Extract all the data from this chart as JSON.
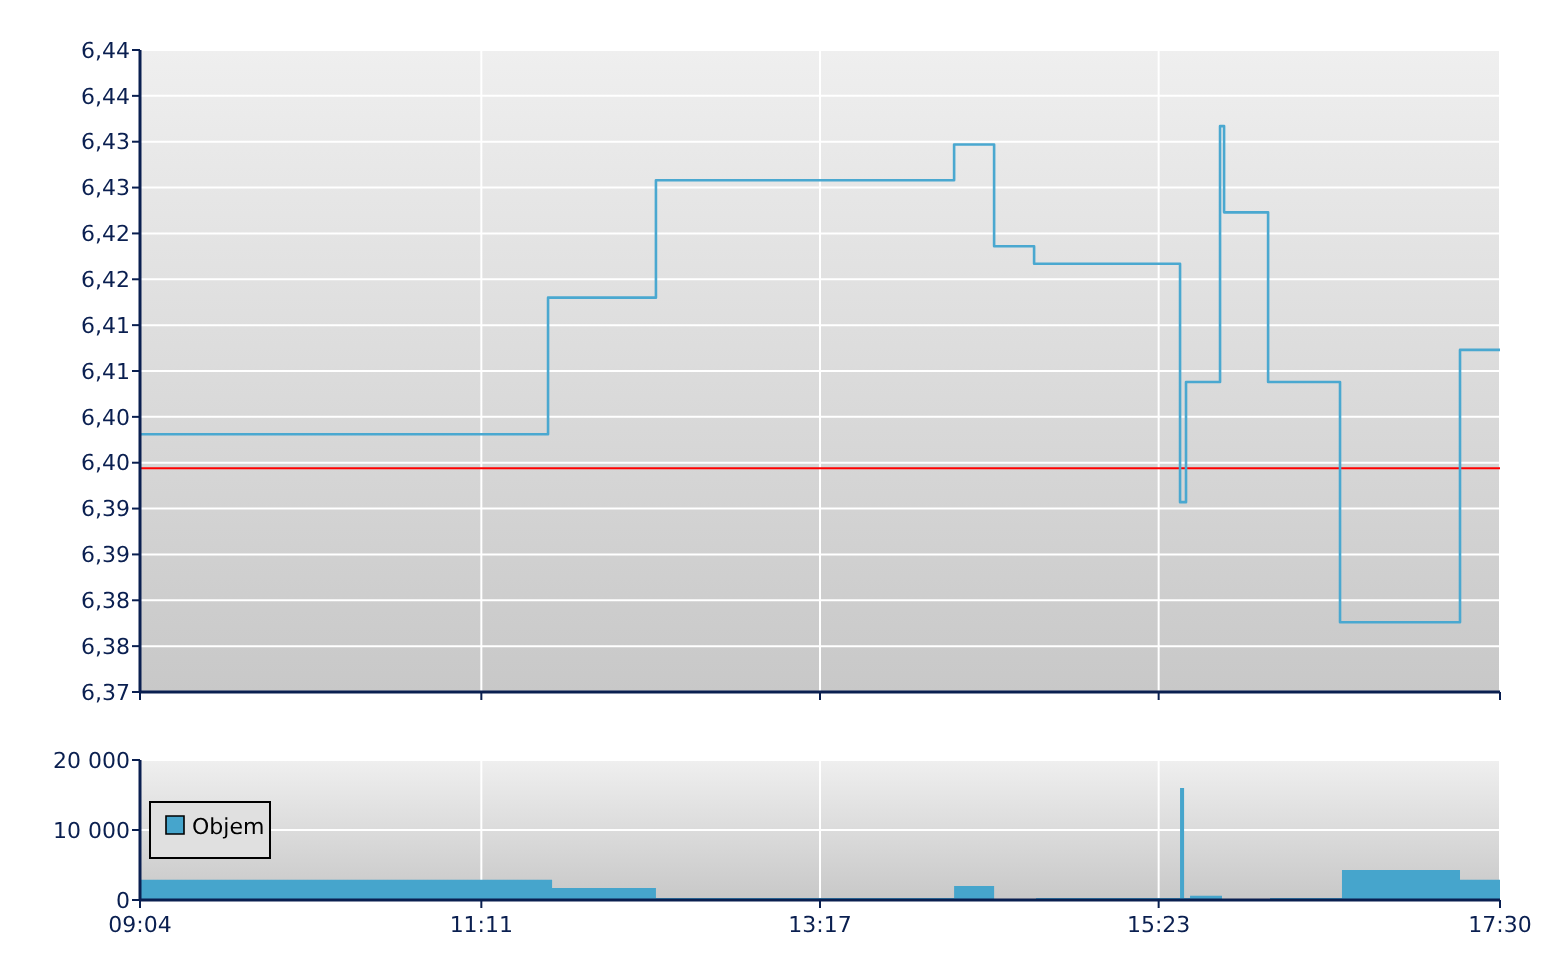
{
  "chart_data": [
    {
      "type": "step",
      "xlim": [
        9.0667,
        17.5
      ],
      "xticks": [
        {
          "value": 9.0667,
          "label": null
        },
        {
          "value": 11.1833,
          "label": null
        },
        {
          "value": 13.2833,
          "label": null
        },
        {
          "value": 15.3833,
          "label": null
        },
        {
          "value": 17.5,
          "label": null
        }
      ],
      "ylim": [
        6.37,
        6.44
      ],
      "yticks": [
        {
          "value": 6.37,
          "label": "6,37"
        },
        {
          "value": 6.375,
          "label": "6,38"
        },
        {
          "value": 6.38,
          "label": "6,38"
        },
        {
          "value": 6.385,
          "label": "6,39"
        },
        {
          "value": 6.39,
          "label": "6,39"
        },
        {
          "value": 6.395,
          "label": "6,40"
        },
        {
          "value": 6.4,
          "label": "6,40"
        },
        {
          "value": 6.405,
          "label": "6,41"
        },
        {
          "value": 6.41,
          "label": "6,41"
        },
        {
          "value": 6.415,
          "label": "6,42"
        },
        {
          "value": 6.42,
          "label": "6,42"
        },
        {
          "value": 6.425,
          "label": "6,43"
        },
        {
          "value": 6.43,
          "label": "6,43"
        },
        {
          "value": 6.435,
          "label": "6,44"
        },
        {
          "value": 6.44,
          "label": "6,44"
        }
      ],
      "grid": true,
      "tick_labels": "y",
      "series": [
        {
          "color": "#4aa8d0",
          "x": [
            9.0667,
            11.597,
            12.266,
            14.115,
            14.363,
            14.611,
            15.516,
            15.553,
            15.764,
            15.789,
            16.062,
            16.508,
            17.252,
            17.5
          ],
          "values": [
            6.3981,
            6.413,
            6.4258,
            6.4297,
            6.4186,
            6.4167,
            6.3907,
            6.4038,
            6.4317,
            6.4223,
            6.4038,
            6.3776,
            6.4073,
            6.4073
          ]
        }
      ],
      "ref_lines": [
        {
          "axis": "y",
          "value": 6.3944,
          "color": "#ff0000"
        }
      ]
    },
    {
      "type": "area",
      "xlim": [
        9.0667,
        17.5
      ],
      "xticks": [
        {
          "value": 9.0667,
          "label": "09:04"
        },
        {
          "value": 11.1833,
          "label": "11:11"
        },
        {
          "value": 13.2833,
          "label": "13:17"
        },
        {
          "value": 15.3833,
          "label": "15:23"
        },
        {
          "value": 17.5,
          "label": "17:30"
        }
      ],
      "ylim": [
        0,
        20000
      ],
      "yticks": [
        0,
        {
          "value": 10000,
          "label": "10 000"
        },
        {
          "value": 20000,
          "label": "20 000"
        }
      ],
      "grid": true,
      "legend": "left",
      "series": [
        {
          "name": "Objem",
          "color": "#46a5cc",
          "x": [
            9.067,
            9.712,
            11.622,
            11.77,
            12.266,
            12.638,
            13.035,
            13.296,
            13.544,
            13.73,
            13.928,
            14.115,
            14.338,
            14.363,
            14.623,
            15.007,
            15.23,
            15.516,
            15.541,
            15.578,
            15.776,
            16.074,
            16.198,
            16.471,
            16.52,
            16.57,
            17.153,
            17.252,
            17.5
          ],
          "values": [
            2900,
            2900,
            1700,
            1700,
            300,
            300,
            300,
            300,
            300,
            300,
            300,
            2000,
            2000,
            0,
            300,
            300,
            300,
            16000,
            300,
            600,
            0,
            300,
            300,
            300,
            4300,
            4300,
            4300,
            2900,
            2900
          ]
        }
      ]
    }
  ]
}
